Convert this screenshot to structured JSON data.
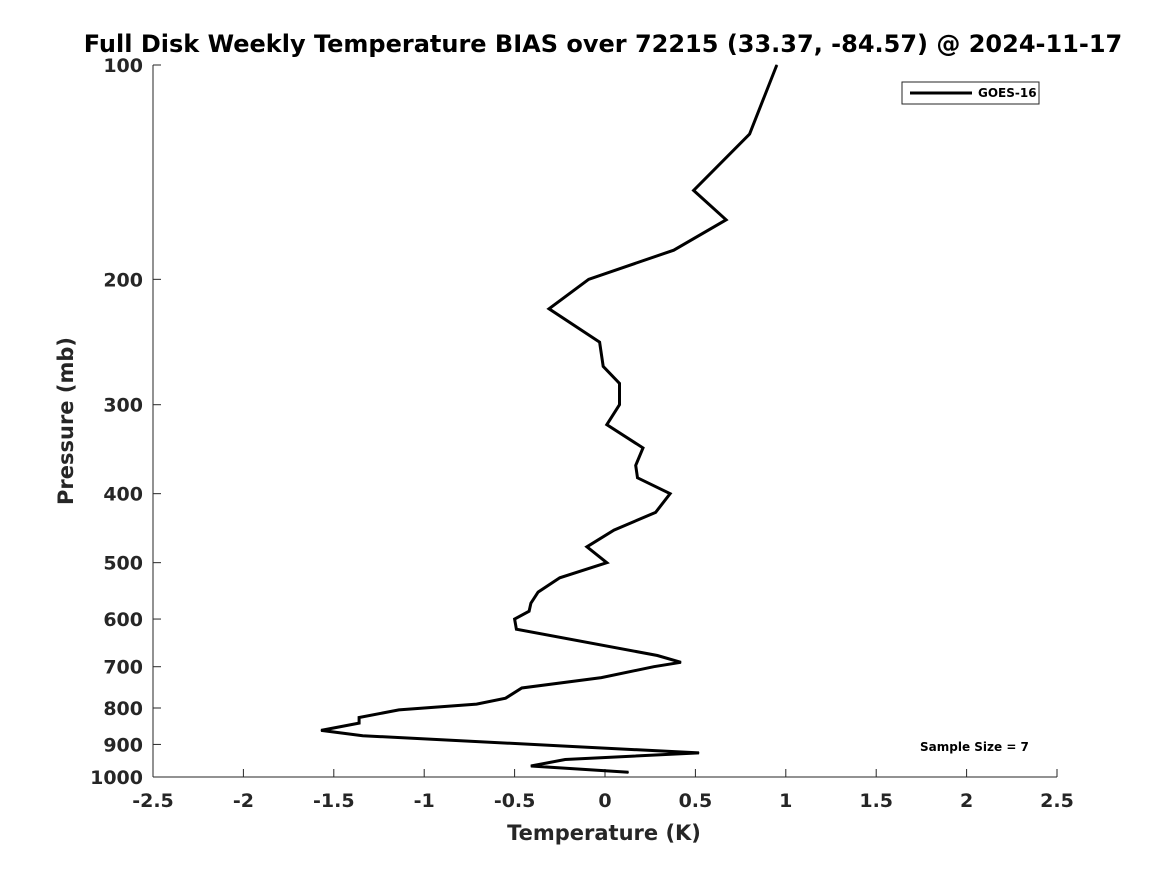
{
  "chart_data": {
    "type": "line",
    "title": "Full Disk Weekly Temperature BIAS over 72215 (33.37, -84.57) @ 2024-11-17",
    "xlabel": "Temperature (K)",
    "ylabel": "Pressure (mb)",
    "xlim": [
      -2.5,
      2.5
    ],
    "ylim": [
      1000,
      100
    ],
    "yscale": "log",
    "grid": false,
    "legend_position": "top-right",
    "x_ticks": [
      "-2.5",
      "-2",
      "-1.5",
      "-1",
      "-0.5",
      "0",
      "0.5",
      "1",
      "1.5",
      "2",
      "2.5"
    ],
    "y_ticks": [
      "100",
      "200",
      "300",
      "400",
      "500",
      "600",
      "700",
      "800",
      "900",
      "1000"
    ],
    "series": [
      {
        "name": "GOES-16",
        "color": "#000000",
        "points": [
          {
            "x": 0.95,
            "y": 100
          },
          {
            "x": 0.8,
            "y": 125
          },
          {
            "x": 0.49,
            "y": 150
          },
          {
            "x": 0.67,
            "y": 165
          },
          {
            "x": 0.38,
            "y": 182
          },
          {
            "x": -0.09,
            "y": 200
          },
          {
            "x": -0.31,
            "y": 220
          },
          {
            "x": -0.03,
            "y": 245
          },
          {
            "x": -0.01,
            "y": 265
          },
          {
            "x": 0.08,
            "y": 280
          },
          {
            "x": 0.08,
            "y": 300
          },
          {
            "x": 0.01,
            "y": 320
          },
          {
            "x": 0.21,
            "y": 345
          },
          {
            "x": 0.17,
            "y": 365
          },
          {
            "x": 0.18,
            "y": 380
          },
          {
            "x": 0.36,
            "y": 400
          },
          {
            "x": 0.28,
            "y": 425
          },
          {
            "x": 0.05,
            "y": 450
          },
          {
            "x": -0.1,
            "y": 475
          },
          {
            "x": 0.01,
            "y": 500
          },
          {
            "x": -0.25,
            "y": 525
          },
          {
            "x": -0.37,
            "y": 550
          },
          {
            "x": -0.41,
            "y": 570
          },
          {
            "x": -0.42,
            "y": 585
          },
          {
            "x": -0.5,
            "y": 600
          },
          {
            "x": -0.49,
            "y": 620
          },
          {
            "x": 0.29,
            "y": 675
          },
          {
            "x": 0.42,
            "y": 690
          },
          {
            "x": 0.27,
            "y": 700
          },
          {
            "x": -0.02,
            "y": 725
          },
          {
            "x": -0.46,
            "y": 750
          },
          {
            "x": -0.55,
            "y": 775
          },
          {
            "x": -0.71,
            "y": 790
          },
          {
            "x": -1.14,
            "y": 805
          },
          {
            "x": -1.36,
            "y": 825
          },
          {
            "x": -1.36,
            "y": 840
          },
          {
            "x": -1.57,
            "y": 860
          },
          {
            "x": -1.34,
            "y": 875
          },
          {
            "x": -0.22,
            "y": 905
          },
          {
            "x": 0.52,
            "y": 925
          },
          {
            "x": -0.22,
            "y": 945
          },
          {
            "x": -0.41,
            "y": 965
          },
          {
            "x": 0.13,
            "y": 985
          }
        ]
      }
    ],
    "annotations": [
      "Sample Size = 7"
    ]
  }
}
